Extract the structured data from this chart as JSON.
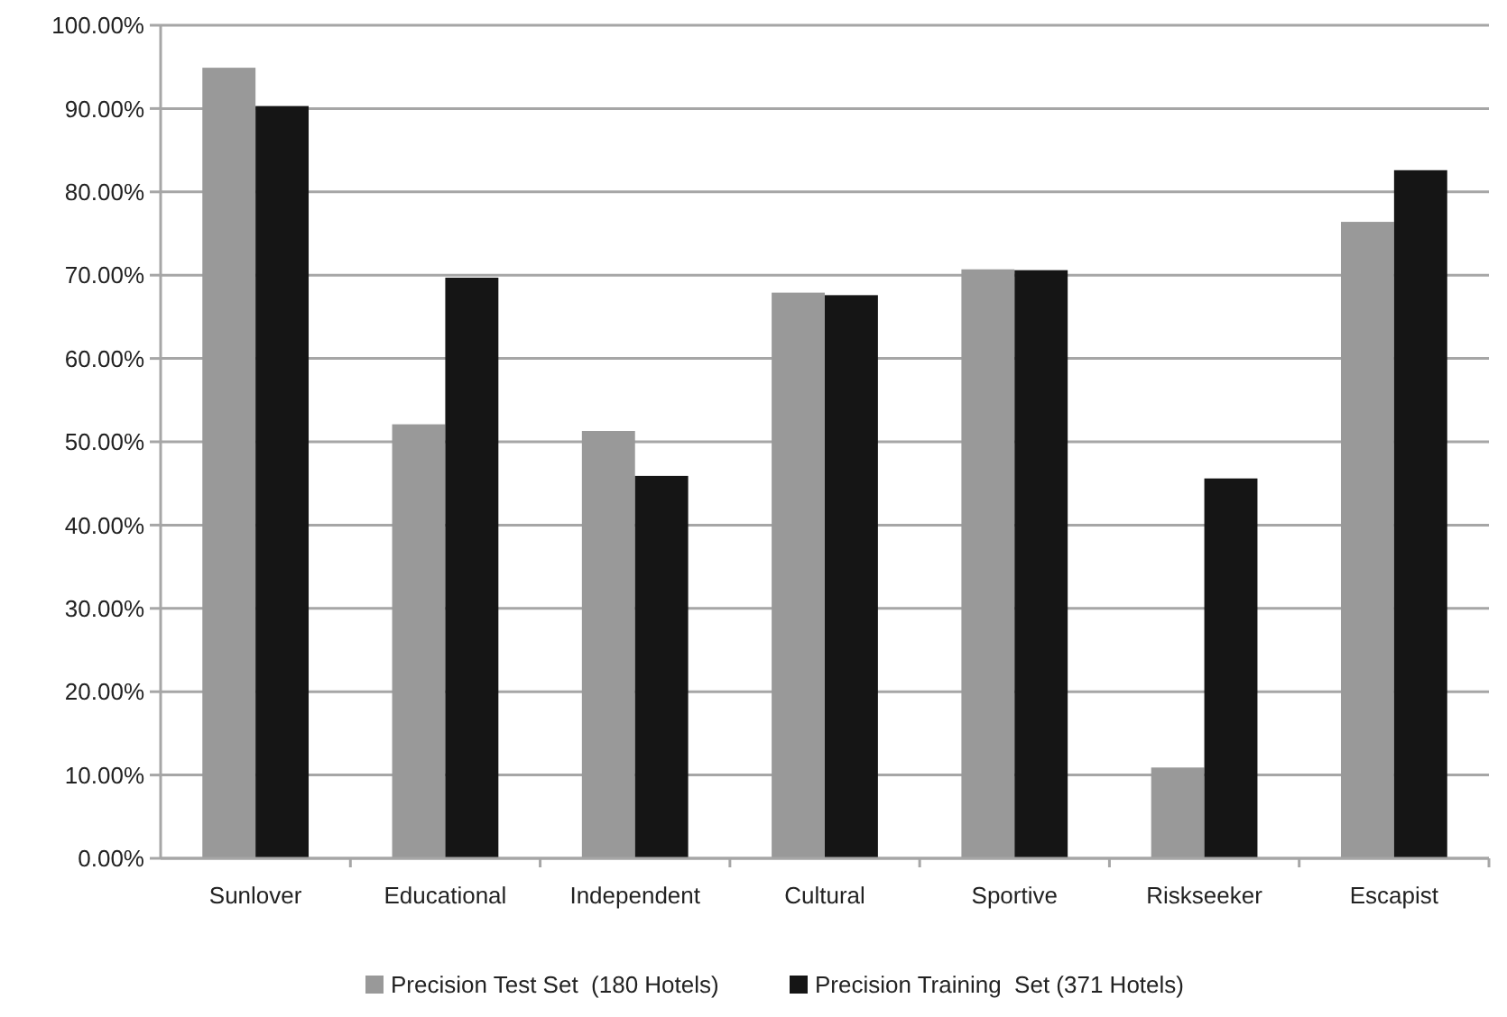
{
  "chart_data": {
    "type": "bar",
    "categories": [
      "Sunlover",
      "Educational",
      "Independent",
      "Cultural",
      "Sportive",
      "Riskseeker",
      "Escapist"
    ],
    "series": [
      {
        "name": "Precision Test Set  (180 Hotels)",
        "color": "#999999",
        "values": [
          94.9,
          52.1,
          51.3,
          67.9,
          70.7,
          10.9,
          76.4
        ]
      },
      {
        "name": "Precision Training  Set (371 Hotels)",
        "color": "#151515",
        "values": [
          90.3,
          69.7,
          45.9,
          67.6,
          70.6,
          45.6,
          82.6
        ]
      }
    ],
    "ylim": [
      0,
      100
    ],
    "yticks": [
      {
        "value": 0,
        "label": "0.00%"
      },
      {
        "value": 10,
        "label": "10.00%"
      },
      {
        "value": 20,
        "label": "20.00%"
      },
      {
        "value": 30,
        "label": "30.00%"
      },
      {
        "value": 40,
        "label": "40.00%"
      },
      {
        "value": 50,
        "label": "50.00%"
      },
      {
        "value": 60,
        "label": "60.00%"
      },
      {
        "value": 70,
        "label": "70.00%"
      },
      {
        "value": 80,
        "label": "80.00%"
      },
      {
        "value": 90,
        "label": "90.00%"
      },
      {
        "value": 100,
        "label": "100.00%"
      }
    ],
    "grid": "y",
    "legend": "bottom"
  }
}
